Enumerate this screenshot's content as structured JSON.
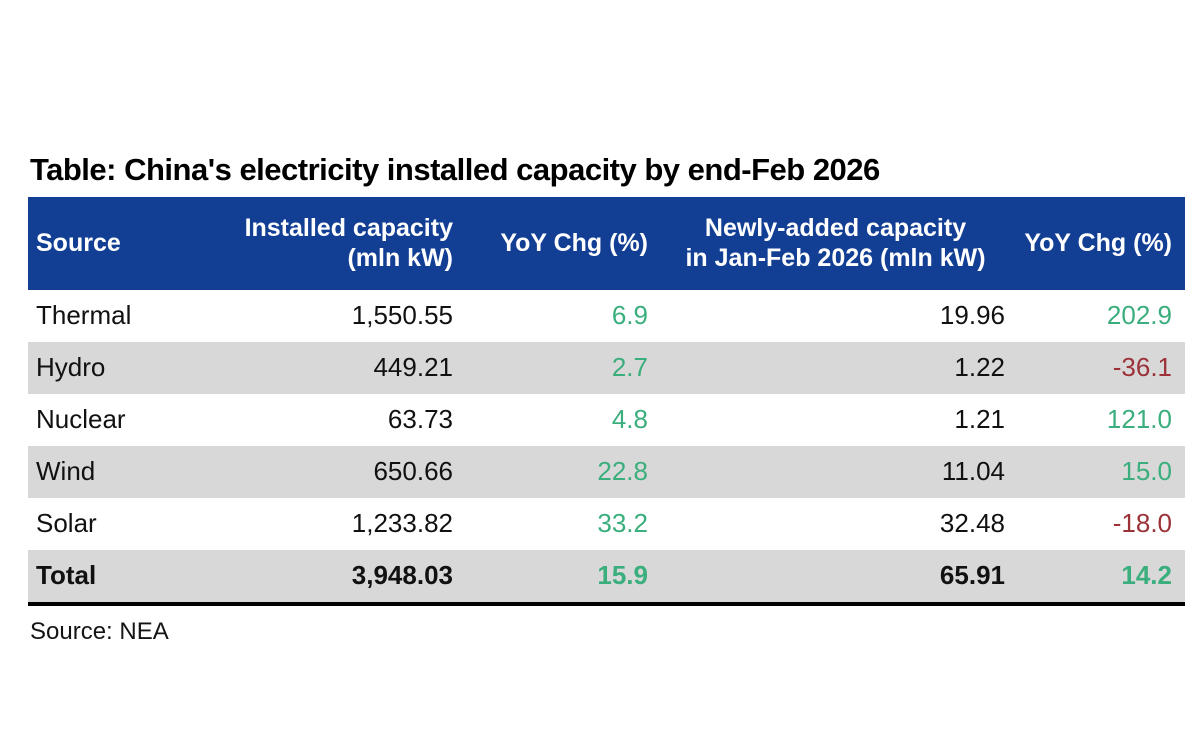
{
  "title": "Table: China's electricity installed capacity by end-Feb 2026",
  "source_note": "Source: NEA",
  "colors": {
    "header_bg": "#123E94",
    "header_text": "#FFFFFF",
    "alt_row_bg": "#D8D8D8",
    "positive_value": "#3AAE7C",
    "negative_value": "#9C3138",
    "body_text": "#111111"
  },
  "table": {
    "columns": [
      {
        "label": "Source"
      },
      {
        "label": "Installed capacity\n(mln kW)"
      },
      {
        "label": "YoY Chg (%)"
      },
      {
        "label": "Newly-added capacity\nin Jan-Feb 2026 (mln kW)"
      },
      {
        "label": "YoY Chg (%)"
      }
    ],
    "rows": [
      {
        "source": "Thermal",
        "installed_capacity": "1,550.55",
        "yoy_installed": "6.9",
        "yoy_installed_class": "pos",
        "newly_added": "19.96",
        "yoy_added": "202.9",
        "yoy_added_class": "pos"
      },
      {
        "source": "Hydro",
        "installed_capacity": "449.21",
        "yoy_installed": "2.7",
        "yoy_installed_class": "pos",
        "newly_added": "1.22",
        "yoy_added": "-36.1",
        "yoy_added_class": "neg"
      },
      {
        "source": "Nuclear",
        "installed_capacity": "63.73",
        "yoy_installed": "4.8",
        "yoy_installed_class": "pos",
        "newly_added": "1.21",
        "yoy_added": "121.0",
        "yoy_added_class": "pos"
      },
      {
        "source": "Wind",
        "installed_capacity": "650.66",
        "yoy_installed": "22.8",
        "yoy_installed_class": "pos",
        "newly_added": "11.04",
        "yoy_added": "15.0",
        "yoy_added_class": "pos"
      },
      {
        "source": "Solar",
        "installed_capacity": "1,233.82",
        "yoy_installed": "33.2",
        "yoy_installed_class": "pos",
        "newly_added": "32.48",
        "yoy_added": "-18.0",
        "yoy_added_class": "neg"
      },
      {
        "source": "Total",
        "installed_capacity": "3,948.03",
        "yoy_installed": "15.9",
        "yoy_installed_class": "pos",
        "newly_added": "65.91",
        "yoy_added": "14.2",
        "yoy_added_class": "pos"
      }
    ]
  },
  "chart_data": {
    "type": "table",
    "title": "Table: China's electricity installed capacity by end-Feb 2026",
    "columns": [
      "Source",
      "Installed capacity (mln kW)",
      "YoY Chg (%)",
      "Newly-added capacity in Jan-Feb 2026 (mln kW)",
      "YoY Chg (%)"
    ],
    "rows": [
      [
        "Thermal",
        1550.55,
        6.9,
        19.96,
        202.9
      ],
      [
        "Hydro",
        449.21,
        2.7,
        1.22,
        -36.1
      ],
      [
        "Nuclear",
        63.73,
        4.8,
        1.21,
        121.0
      ],
      [
        "Wind",
        650.66,
        22.8,
        11.04,
        15.0
      ],
      [
        "Solar",
        1233.82,
        33.2,
        32.48,
        -18.0
      ],
      [
        "Total",
        3948.03,
        15.9,
        65.91,
        14.2
      ]
    ],
    "source": "Source: NEA"
  }
}
